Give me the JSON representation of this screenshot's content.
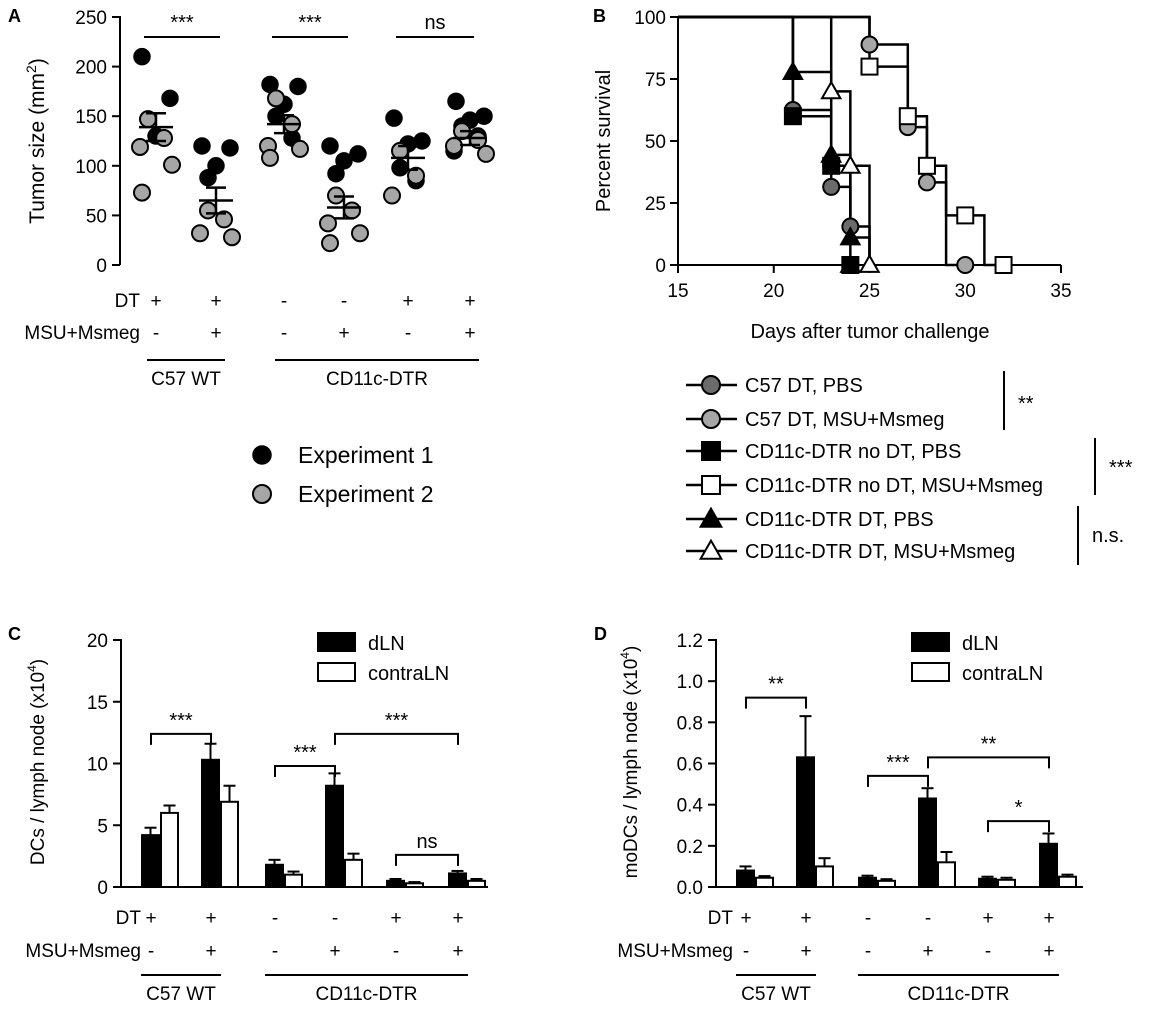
{
  "colors": {
    "black": "#000000",
    "gray": "#a6a6a6",
    "darkgray": "#6b6b6b",
    "white": "#ffffff"
  },
  "chart_data": [
    {
      "id": "A",
      "panel": "A",
      "type": "scatter",
      "ylabel": "Tumor size (mm",
      "ylabel_sup": "2",
      "ylabel_close": ")",
      "ylim": [
        0,
        250
      ],
      "yticks": [
        "0",
        "50",
        "100",
        "150",
        "200",
        "250"
      ],
      "conditions": {
        "row_labels": [
          "DT",
          "MSU+Msmeg"
        ],
        "rows": [
          [
            "+",
            "+",
            "-",
            "-",
            "+",
            "+"
          ],
          [
            "-",
            "+",
            "-",
            "+",
            "-",
            "+"
          ]
        ],
        "groups": [
          {
            "label": "C57 WT",
            "from": 0,
            "to": 1
          },
          {
            "label": "CD11c-DTR",
            "from": 2,
            "to": 5
          }
        ]
      },
      "groups": [
        {
          "mean": 139,
          "sem": 14,
          "exp1": [
            210,
            168,
            130
          ],
          "exp2": [
            147,
            128,
            119,
            101,
            73
          ]
        },
        {
          "mean": 65,
          "sem": 13,
          "exp1": [
            120,
            118,
            100,
            88
          ],
          "exp2": [
            55,
            46,
            32,
            28
          ]
        },
        {
          "mean": 142,
          "sem": 9,
          "exp1": [
            182,
            180,
            162,
            150,
            128
          ],
          "exp2": [
            168,
            142,
            120,
            117,
            108
          ]
        },
        {
          "mean": 58,
          "sem": 11,
          "exp1": [
            120,
            112,
            105,
            92
          ],
          "exp2": [
            70,
            55,
            42,
            32,
            22
          ]
        },
        {
          "mean": 108,
          "sem": 12,
          "exp1": [
            148,
            125,
            122,
            98,
            85
          ],
          "exp2": [
            115,
            90,
            70
          ]
        },
        {
          "mean": 128,
          "sem": 7,
          "exp1": [
            165,
            150,
            146,
            140,
            130,
            115
          ],
          "exp2": [
            135,
            126,
            120,
            112
          ]
        }
      ],
      "significance": [
        {
          "from": 0,
          "to": 1,
          "label": "***"
        },
        {
          "from": 2,
          "to": 3,
          "label": "***"
        },
        {
          "from": 4,
          "to": 5,
          "label": "ns"
        }
      ],
      "legend": [
        "Experiment 1",
        "Experiment 2"
      ]
    },
    {
      "id": "B",
      "panel": "B",
      "type": "line",
      "xlabel": "Days after tumor challenge",
      "ylabel": "Percent survival",
      "xlim": [
        15,
        35
      ],
      "ylim": [
        0,
        100
      ],
      "xticks": [
        "15",
        "20",
        "25",
        "30",
        "35"
      ],
      "yticks": [
        "0",
        "25",
        "50",
        "75",
        "100"
      ],
      "series": [
        {
          "name": "C57 DT, PBS",
          "marker": "circle",
          "fill": "darkgray",
          "steps": [
            [
              15,
              100
            ],
            [
              21,
              100
            ],
            [
              21,
              62.5
            ],
            [
              23,
              62.5
            ],
            [
              23,
              31.5
            ],
            [
              24,
              31.5
            ],
            [
              24,
              15.5
            ],
            [
              25,
              15.5
            ],
            [
              25,
              0
            ]
          ],
          "markers": [
            [
              21,
              62.5
            ],
            [
              23,
              40
            ],
            [
              23,
              31.5
            ],
            [
              24,
              15.5
            ],
            [
              24,
              0
            ]
          ]
        },
        {
          "name": "C57 DT, MSU+Msmeg",
          "marker": "circle",
          "fill": "gray",
          "steps": [
            [
              15,
              100
            ],
            [
              25,
              100
            ],
            [
              25,
              88.9
            ],
            [
              27,
              88.9
            ],
            [
              27,
              55.6
            ],
            [
              28,
              55.6
            ],
            [
              28,
              33.3
            ],
            [
              29,
              33.3
            ],
            [
              29,
              0
            ],
            [
              30,
              0
            ]
          ],
          "markers": [
            [
              25,
              88.9
            ],
            [
              27,
              55.6
            ],
            [
              28,
              33.3
            ],
            [
              30,
              0
            ]
          ]
        },
        {
          "name": "CD11c-DTR no DT, PBS",
          "marker": "square",
          "fill": "black",
          "steps": [
            [
              15,
              100
            ],
            [
              21,
              100
            ],
            [
              21,
              60
            ],
            [
              23,
              60
            ],
            [
              23,
              40
            ],
            [
              24,
              40
            ],
            [
              24,
              0
            ]
          ],
          "markers": [
            [
              21,
              60
            ],
            [
              23,
              40
            ],
            [
              24,
              0
            ]
          ]
        },
        {
          "name": "CD11c-DTR no DT, MSU+Msmeg",
          "marker": "square",
          "fill": "white",
          "steps": [
            [
              15,
              100
            ],
            [
              25,
              100
            ],
            [
              25,
              80
            ],
            [
              27,
              80
            ],
            [
              27,
              60
            ],
            [
              28,
              60
            ],
            [
              28,
              40
            ],
            [
              29,
              40
            ],
            [
              29,
              20
            ],
            [
              31,
              20
            ],
            [
              31,
              0
            ],
            [
              32,
              0
            ]
          ],
          "markers": [
            [
              25,
              80
            ],
            [
              27,
              60
            ],
            [
              28,
              40
            ],
            [
              30,
              20
            ],
            [
              32,
              0
            ]
          ]
        },
        {
          "name": "CD11c-DTR DT, PBS",
          "marker": "triangle",
          "fill": "black",
          "steps": [
            [
              15,
              100
            ],
            [
              21,
              100
            ],
            [
              21,
              77.8
            ],
            [
              23,
              77.8
            ],
            [
              23,
              44.4
            ],
            [
              24,
              44.4
            ],
            [
              24,
              11.1
            ],
            [
              25,
              11.1
            ],
            [
              25,
              0
            ]
          ],
          "markers": [
            [
              21,
              77.8
            ],
            [
              23,
              44.4
            ],
            [
              24,
              11.1
            ],
            [
              24,
              0
            ]
          ]
        },
        {
          "name": "CD11c-DTR DT, MSU+Msmeg",
          "marker": "triangle",
          "fill": "white",
          "steps": [
            [
              15,
              100
            ],
            [
              23,
              100
            ],
            [
              23,
              70
            ],
            [
              24,
              70
            ],
            [
              24,
              40
            ],
            [
              25,
              40
            ],
            [
              25,
              0
            ]
          ],
          "markers": [
            [
              23,
              70
            ],
            [
              24,
              40
            ],
            [
              25,
              0
            ]
          ]
        }
      ],
      "legend_significance": [
        {
          "from": 0,
          "to": 1,
          "label": "**"
        },
        {
          "from": 2,
          "to": 3,
          "label": "***"
        },
        {
          "from": 4,
          "to": 5,
          "label": "n.s."
        }
      ]
    },
    {
      "id": "C",
      "panel": "C",
      "type": "bar",
      "ylabel": "DCs / lymph node (x10",
      "ylabel_sup": "4",
      "ylabel_close": ")",
      "ylim": [
        0,
        20
      ],
      "yticks": [
        "0",
        "5",
        "10",
        "15",
        "20"
      ],
      "series": [
        {
          "name": "dLN",
          "fill": "black",
          "values": [
            4.2,
            10.3,
            1.8,
            8.2,
            0.5,
            1.1
          ],
          "errors": [
            0.6,
            1.3,
            0.4,
            1.0,
            0.15,
            0.2
          ]
        },
        {
          "name": "contraLN",
          "fill": "white",
          "values": [
            6.0,
            6.9,
            1.0,
            2.2,
            0.3,
            0.5
          ],
          "errors": [
            0.6,
            1.3,
            0.25,
            0.5,
            0.1,
            0.15
          ]
        }
      ],
      "conditions": {
        "row_labels": [
          "DT",
          "MSU+Msmeg"
        ],
        "rows": [
          [
            "+",
            "+",
            "-",
            "-",
            "+",
            "+"
          ],
          [
            "-",
            "+",
            "-",
            "+",
            "-",
            "+"
          ]
        ],
        "groups": [
          {
            "label": "C57 WT",
            "from": 0,
            "to": 1
          },
          {
            "label": "CD11c-DTR",
            "from": 2,
            "to": 5
          }
        ]
      },
      "significance": [
        {
          "from": 0,
          "to": 1,
          "label": "***",
          "y": 12.4
        },
        {
          "from": 2,
          "to": 3,
          "label": "***",
          "y": 9.8
        },
        {
          "from": 3,
          "to": 5,
          "label": "***",
          "y": 12.4
        },
        {
          "from": 4,
          "to": 5,
          "label": "ns",
          "y": 2.6
        }
      ]
    },
    {
      "id": "D",
      "panel": "D",
      "type": "bar",
      "ylabel": "moDCs / lymph node (x10",
      "ylabel_sup": "4",
      "ylabel_close": ")",
      "ylim": [
        0,
        1.2
      ],
      "yticks": [
        "0.0",
        "0.2",
        "0.4",
        "0.6",
        "0.8",
        "1.0",
        "1.2"
      ],
      "series": [
        {
          "name": "dLN",
          "fill": "black",
          "values": [
            0.08,
            0.63,
            0.045,
            0.43,
            0.04,
            0.21
          ],
          "errors": [
            0.02,
            0.2,
            0.01,
            0.05,
            0.01,
            0.05
          ]
        },
        {
          "name": "contraLN",
          "fill": "white",
          "values": [
            0.045,
            0.1,
            0.03,
            0.12,
            0.035,
            0.05
          ],
          "errors": [
            0.008,
            0.04,
            0.008,
            0.05,
            0.01,
            0.01
          ]
        }
      ],
      "conditions": {
        "row_labels": [
          "DT",
          "MSU+Msmeg"
        ],
        "rows": [
          [
            "+",
            "+",
            "-",
            "-",
            "+",
            "+"
          ],
          [
            "-",
            "+",
            "-",
            "+",
            "-",
            "+"
          ]
        ],
        "groups": [
          {
            "label": "C57 WT",
            "from": 0,
            "to": 1
          },
          {
            "label": "CD11c-DTR",
            "from": 2,
            "to": 5
          }
        ]
      },
      "significance": [
        {
          "from": 0,
          "to": 1,
          "label": "**",
          "y": 0.92
        },
        {
          "from": 2,
          "to": 3,
          "label": "***",
          "y": 0.54
        },
        {
          "from": 3,
          "to": 5,
          "label": "**",
          "y": 0.63
        },
        {
          "from": 4,
          "to": 5,
          "label": "*",
          "y": 0.32
        }
      ]
    }
  ]
}
